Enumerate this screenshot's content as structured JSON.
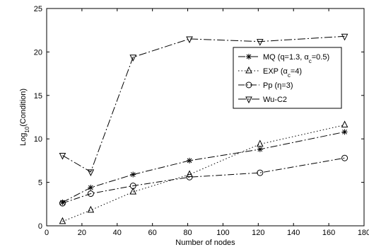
{
  "chart_data": {
    "type": "line",
    "xlabel": "Number of nodes",
    "ylabel_base": "Log",
    "ylabel_sub": "10",
    "ylabel_rest": "(Condition)",
    "xlim": [
      0,
      180
    ],
    "ylim": [
      0,
      25
    ],
    "xticks": [
      0,
      20,
      40,
      60,
      80,
      100,
      120,
      140,
      160,
      180
    ],
    "yticks": [
      0,
      5,
      10,
      15,
      20,
      25
    ],
    "grid": false,
    "legend_position": "top-right",
    "series": [
      {
        "name": "MQ (q=1.3, α_c=0.5)",
        "legend_parts": [
          [
            "MQ (q=1.3, α",
            ""
          ],
          [
            "c",
            "sub"
          ],
          [
            "=0.5)",
            ""
          ]
        ],
        "marker": "star",
        "dash": "10,3,2,3",
        "x": [
          9,
          25,
          49,
          81,
          121,
          169
        ],
        "y": [
          2.7,
          4.4,
          5.9,
          7.5,
          8.8,
          10.8
        ]
      },
      {
        "name": "EXP (α_c=4)",
        "legend_parts": [
          [
            "EXP (α",
            ""
          ],
          [
            "c",
            "sub"
          ],
          [
            "=4)",
            ""
          ]
        ],
        "marker": "triangle-up",
        "dash": "1.5,3",
        "x": [
          9,
          25,
          49,
          81,
          121,
          169
        ],
        "y": [
          0.5,
          1.8,
          3.9,
          5.9,
          9.4,
          11.6
        ]
      },
      {
        "name": "Pp (η=3)",
        "legend_parts": [
          [
            "Pp (η=3)",
            ""
          ]
        ],
        "marker": "circle",
        "dash": "9,3,2,3",
        "x": [
          9,
          25,
          49,
          81,
          121,
          169
        ],
        "y": [
          2.6,
          3.7,
          4.6,
          5.6,
          6.1,
          7.8
        ]
      },
      {
        "name": "Wu-C2",
        "legend_parts": [
          [
            "Wu-C2",
            ""
          ]
        ],
        "marker": "triangle-down",
        "dash": "11,3,2,3",
        "x": [
          9,
          25,
          49,
          81,
          121,
          169
        ],
        "y": [
          8.1,
          6.2,
          19.4,
          21.5,
          21.2,
          21.8
        ]
      }
    ]
  }
}
